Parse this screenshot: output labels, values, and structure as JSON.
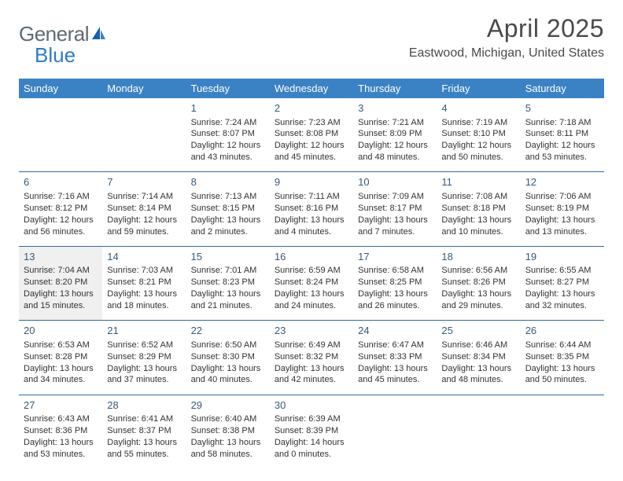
{
  "logo": {
    "text_a": "General",
    "text_b": "Blue"
  },
  "title": "April 2025",
  "location": "Eastwood, Michigan, United States",
  "day_headers": [
    "Sunday",
    "Monday",
    "Tuesday",
    "Wednesday",
    "Thursday",
    "Friday",
    "Saturday"
  ],
  "colors": {
    "header_bg": "#3b82c4",
    "header_text": "#ffffff",
    "row_sep": "#2f6aa3",
    "day_num": "#3a5a7a",
    "body_text": "#333333",
    "title_text": "#4a4a4a",
    "logo_gray": "#5f6a72",
    "logo_blue": "#2f7bbf",
    "shaded_bg": "#f0f0f0"
  },
  "weeks": [
    [
      {
        "blank": true
      },
      {
        "blank": true
      },
      {
        "day": "1",
        "sunrise": "Sunrise: 7:24 AM",
        "sunset": "Sunset: 8:07 PM",
        "daylight": "Daylight: 12 hours and 43 minutes."
      },
      {
        "day": "2",
        "sunrise": "Sunrise: 7:23 AM",
        "sunset": "Sunset: 8:08 PM",
        "daylight": "Daylight: 12 hours and 45 minutes."
      },
      {
        "day": "3",
        "sunrise": "Sunrise: 7:21 AM",
        "sunset": "Sunset: 8:09 PM",
        "daylight": "Daylight: 12 hours and 48 minutes."
      },
      {
        "day": "4",
        "sunrise": "Sunrise: 7:19 AM",
        "sunset": "Sunset: 8:10 PM",
        "daylight": "Daylight: 12 hours and 50 minutes."
      },
      {
        "day": "5",
        "sunrise": "Sunrise: 7:18 AM",
        "sunset": "Sunset: 8:11 PM",
        "daylight": "Daylight: 12 hours and 53 minutes."
      }
    ],
    [
      {
        "day": "6",
        "sunrise": "Sunrise: 7:16 AM",
        "sunset": "Sunset: 8:12 PM",
        "daylight": "Daylight: 12 hours and 56 minutes."
      },
      {
        "day": "7",
        "sunrise": "Sunrise: 7:14 AM",
        "sunset": "Sunset: 8:14 PM",
        "daylight": "Daylight: 12 hours and 59 minutes."
      },
      {
        "day": "8",
        "sunrise": "Sunrise: 7:13 AM",
        "sunset": "Sunset: 8:15 PM",
        "daylight": "Daylight: 13 hours and 2 minutes."
      },
      {
        "day": "9",
        "sunrise": "Sunrise: 7:11 AM",
        "sunset": "Sunset: 8:16 PM",
        "daylight": "Daylight: 13 hours and 4 minutes."
      },
      {
        "day": "10",
        "sunrise": "Sunrise: 7:09 AM",
        "sunset": "Sunset: 8:17 PM",
        "daylight": "Daylight: 13 hours and 7 minutes."
      },
      {
        "day": "11",
        "sunrise": "Sunrise: 7:08 AM",
        "sunset": "Sunset: 8:18 PM",
        "daylight": "Daylight: 13 hours and 10 minutes."
      },
      {
        "day": "12",
        "sunrise": "Sunrise: 7:06 AM",
        "sunset": "Sunset: 8:19 PM",
        "daylight": "Daylight: 13 hours and 13 minutes."
      }
    ],
    [
      {
        "day": "13",
        "shaded": true,
        "sunrise": "Sunrise: 7:04 AM",
        "sunset": "Sunset: 8:20 PM",
        "daylight": "Daylight: 13 hours and 15 minutes."
      },
      {
        "day": "14",
        "sunrise": "Sunrise: 7:03 AM",
        "sunset": "Sunset: 8:21 PM",
        "daylight": "Daylight: 13 hours and 18 minutes."
      },
      {
        "day": "15",
        "sunrise": "Sunrise: 7:01 AM",
        "sunset": "Sunset: 8:23 PM",
        "daylight": "Daylight: 13 hours and 21 minutes."
      },
      {
        "day": "16",
        "sunrise": "Sunrise: 6:59 AM",
        "sunset": "Sunset: 8:24 PM",
        "daylight": "Daylight: 13 hours and 24 minutes."
      },
      {
        "day": "17",
        "sunrise": "Sunrise: 6:58 AM",
        "sunset": "Sunset: 8:25 PM",
        "daylight": "Daylight: 13 hours and 26 minutes."
      },
      {
        "day": "18",
        "sunrise": "Sunrise: 6:56 AM",
        "sunset": "Sunset: 8:26 PM",
        "daylight": "Daylight: 13 hours and 29 minutes."
      },
      {
        "day": "19",
        "sunrise": "Sunrise: 6:55 AM",
        "sunset": "Sunset: 8:27 PM",
        "daylight": "Daylight: 13 hours and 32 minutes."
      }
    ],
    [
      {
        "day": "20",
        "sunrise": "Sunrise: 6:53 AM",
        "sunset": "Sunset: 8:28 PM",
        "daylight": "Daylight: 13 hours and 34 minutes."
      },
      {
        "day": "21",
        "sunrise": "Sunrise: 6:52 AM",
        "sunset": "Sunset: 8:29 PM",
        "daylight": "Daylight: 13 hours and 37 minutes."
      },
      {
        "day": "22",
        "sunrise": "Sunrise: 6:50 AM",
        "sunset": "Sunset: 8:30 PM",
        "daylight": "Daylight: 13 hours and 40 minutes."
      },
      {
        "day": "23",
        "sunrise": "Sunrise: 6:49 AM",
        "sunset": "Sunset: 8:32 PM",
        "daylight": "Daylight: 13 hours and 42 minutes."
      },
      {
        "day": "24",
        "sunrise": "Sunrise: 6:47 AM",
        "sunset": "Sunset: 8:33 PM",
        "daylight": "Daylight: 13 hours and 45 minutes."
      },
      {
        "day": "25",
        "sunrise": "Sunrise: 6:46 AM",
        "sunset": "Sunset: 8:34 PM",
        "daylight": "Daylight: 13 hours and 48 minutes."
      },
      {
        "day": "26",
        "sunrise": "Sunrise: 6:44 AM",
        "sunset": "Sunset: 8:35 PM",
        "daylight": "Daylight: 13 hours and 50 minutes."
      }
    ],
    [
      {
        "day": "27",
        "sunrise": "Sunrise: 6:43 AM",
        "sunset": "Sunset: 8:36 PM",
        "daylight": "Daylight: 13 hours and 53 minutes."
      },
      {
        "day": "28",
        "sunrise": "Sunrise: 6:41 AM",
        "sunset": "Sunset: 8:37 PM",
        "daylight": "Daylight: 13 hours and 55 minutes."
      },
      {
        "day": "29",
        "sunrise": "Sunrise: 6:40 AM",
        "sunset": "Sunset: 8:38 PM",
        "daylight": "Daylight: 13 hours and 58 minutes."
      },
      {
        "day": "30",
        "sunrise": "Sunrise: 6:39 AM",
        "sunset": "Sunset: 8:39 PM",
        "daylight": "Daylight: 14 hours and 0 minutes."
      },
      {
        "blank": true
      },
      {
        "blank": true
      },
      {
        "blank": true
      }
    ]
  ]
}
